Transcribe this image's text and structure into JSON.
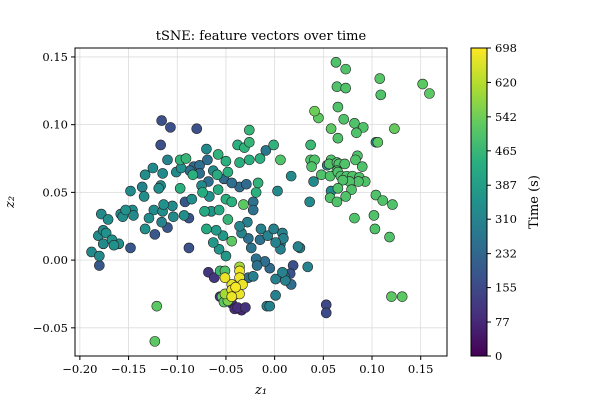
{
  "chart_data": {
    "type": "scatter",
    "title": "tSNE: feature vectors over time",
    "xlabel": "z₁",
    "ylabel": "z₂",
    "xlim": [
      -0.205,
      0.177
    ],
    "ylim": [
      -0.0708,
      0.1566
    ],
    "xticks": [
      -0.2,
      -0.15,
      -0.1,
      -0.05,
      0.0,
      0.05,
      0.1,
      0.15
    ],
    "xtick_labels": [
      "−0.20",
      "−0.15",
      "−0.10",
      "−0.05",
      "0.00",
      "0.05",
      "0.10",
      "0.15"
    ],
    "yticks": [
      -0.05,
      0.0,
      0.05,
      0.1,
      0.15
    ],
    "ytick_labels": [
      "−0.05",
      "0.00",
      "0.05",
      "0.10",
      "0.15"
    ],
    "grid": true,
    "colorbar": {
      "label": "Time (s)",
      "colormap": "viridis",
      "range": [
        0,
        698
      ],
      "ticks": [
        0,
        77,
        155,
        232,
        310,
        387,
        465,
        542,
        620,
        698
      ],
      "tick_labels": [
        "0",
        "77",
        "155",
        "232",
        "310",
        "387",
        "465",
        "542",
        "620",
        "698"
      ]
    },
    "points_format": [
      "z1",
      "z2",
      "time_s"
    ],
    "points": [
      [
        0.063,
        0.146,
        500
      ],
      [
        0.073,
        0.141,
        500
      ],
      [
        0.108,
        0.134,
        510
      ],
      [
        0.152,
        0.13,
        520
      ],
      [
        0.159,
        0.123,
        520
      ],
      [
        0.064,
        0.128,
        500
      ],
      [
        0.073,
        0.127,
        500
      ],
      [
        0.109,
        0.122,
        500
      ],
      [
        0.065,
        0.113,
        500
      ],
      [
        0.041,
        0.11,
        540
      ],
      [
        0.045,
        0.105,
        520
      ],
      [
        0.071,
        0.104,
        500
      ],
      [
        0.082,
        0.101,
        500
      ],
      [
        0.091,
        0.098,
        500
      ],
      [
        0.058,
        0.097,
        520
      ],
      [
        0.123,
        0.097,
        530
      ],
      [
        0.084,
        0.094,
        500
      ],
      [
        0.065,
        0.09,
        500
      ],
      [
        0.104,
        0.087,
        330
      ],
      [
        0.106,
        0.087,
        520
      ],
      [
        0.037,
        0.085,
        470
      ],
      [
        0.037,
        0.074,
        500
      ],
      [
        0.041,
        0.074,
        500
      ],
      [
        0.058,
        0.074,
        500
      ],
      [
        0.085,
        0.077,
        500
      ],
      [
        0.083,
        0.074,
        500
      ],
      [
        0.038,
        0.069,
        500
      ],
      [
        0.054,
        0.07,
        330
      ],
      [
        0.056,
        0.071,
        500
      ],
      [
        0.064,
        0.072,
        500
      ],
      [
        0.066,
        0.071,
        500
      ],
      [
        0.072,
        0.071,
        500
      ],
      [
        0.09,
        0.069,
        500
      ],
      [
        0.064,
        0.066,
        500
      ],
      [
        0.017,
        0.062,
        330
      ],
      [
        0.048,
        0.063,
        500
      ],
      [
        0.057,
        0.062,
        500
      ],
      [
        0.065,
        0.065,
        500
      ],
      [
        0.068,
        0.062,
        500
      ],
      [
        0.074,
        0.062,
        500
      ],
      [
        0.08,
        0.062,
        500
      ],
      [
        0.087,
        0.061,
        500
      ],
      [
        0.093,
        0.058,
        500
      ],
      [
        0.086,
        0.058,
        500
      ],
      [
        0.077,
        0.058,
        500
      ],
      [
        0.07,
        0.059,
        500
      ],
      [
        0.04,
        0.058,
        330
      ],
      [
        0.065,
        0.053,
        500
      ],
      [
        0.058,
        0.051,
        330
      ],
      [
        0.079,
        0.052,
        500
      ],
      [
        0.104,
        0.048,
        500
      ],
      [
        0.073,
        0.047,
        500
      ],
      [
        0.057,
        0.046,
        500
      ],
      [
        0.111,
        0.044,
        500
      ],
      [
        0.064,
        0.043,
        500
      ],
      [
        0.036,
        0.043,
        330
      ],
      [
        0.121,
        0.041,
        500
      ],
      [
        0.102,
        0.033,
        500
      ],
      [
        0.082,
        0.031,
        500
      ],
      [
        0.103,
        0.023,
        500
      ],
      [
        0.118,
        0.017,
        500
      ],
      [
        0.12,
        -0.027,
        520
      ],
      [
        0.131,
        -0.027,
        520
      ],
      [
        0.053,
        -0.033,
        150
      ],
      [
        0.053,
        -0.039,
        160
      ],
      [
        0.026,
        0.009,
        310
      ],
      [
        0.034,
        -0.005,
        310
      ],
      [
        0.019,
        -0.004,
        170
      ],
      [
        0.016,
        -0.01,
        180
      ],
      [
        0.01,
        -0.012,
        300
      ],
      [
        0.008,
        0.02,
        310
      ],
      [
        0.009,
        0.016,
        310
      ],
      [
        0.006,
        0.012,
        300
      ],
      [
        0.006,
        0.008,
        300
      ],
      [
        -0.116,
        0.103,
        170
      ],
      [
        -0.107,
        0.098,
        170
      ],
      [
        -0.08,
        0.097,
        170
      ],
      [
        -0.117,
        0.085,
        170
      ],
      [
        -0.188,
        0.006,
        330
      ],
      [
        -0.18,
        0.003,
        330
      ],
      [
        -0.18,
        -0.004,
        190
      ],
      [
        -0.178,
        0.034,
        330
      ],
      [
        -0.171,
        0.03,
        340
      ],
      [
        -0.181,
        0.018,
        330
      ],
      [
        -0.176,
        0.022,
        330
      ],
      [
        -0.173,
        0.02,
        350
      ],
      [
        -0.176,
        0.012,
        330
      ],
      [
        -0.167,
        0.015,
        350
      ],
      [
        -0.165,
        0.011,
        350
      ],
      [
        -0.16,
        0.012,
        340
      ],
      [
        -0.158,
        0.034,
        330
      ],
      [
        -0.156,
        0.032,
        340
      ],
      [
        -0.153,
        0.037,
        350
      ],
      [
        -0.146,
        0.037,
        330
      ],
      [
        -0.145,
        0.033,
        330
      ],
      [
        -0.148,
        0.051,
        330
      ],
      [
        -0.148,
        0.009,
        190
      ],
      [
        -0.134,
        0.047,
        340
      ],
      [
        -0.136,
        0.054,
        310
      ],
      [
        -0.133,
        0.063,
        340
      ],
      [
        -0.133,
        0.023,
        350
      ],
      [
        -0.129,
        0.031,
        340
      ],
      [
        -0.124,
        0.037,
        330
      ],
      [
        -0.125,
        0.068,
        330
      ],
      [
        -0.119,
        0.053,
        340
      ],
      [
        -0.117,
        0.055,
        330
      ],
      [
        -0.115,
        0.064,
        330
      ],
      [
        -0.123,
        0.019,
        190
      ],
      [
        -0.115,
        0.036,
        340
      ],
      [
        -0.114,
        0.041,
        350
      ],
      [
        -0.116,
        0.028,
        310
      ],
      [
        -0.11,
        0.024,
        190
      ],
      [
        -0.11,
        0.074,
        310
      ],
      [
        -0.105,
        0.04,
        330
      ],
      [
        -0.104,
        0.032,
        330
      ],
      [
        -0.097,
        0.074,
        450
      ],
      [
        -0.091,
        0.075,
        460
      ],
      [
        -0.097,
        0.053,
        440
      ],
      [
        -0.101,
        0.065,
        330
      ],
      [
        -0.096,
        0.068,
        350
      ],
      [
        -0.092,
        0.043,
        190
      ],
      [
        -0.093,
        0.033,
        340
      ],
      [
        -0.088,
        0.031,
        180
      ],
      [
        -0.088,
        0.009,
        180
      ],
      [
        -0.085,
        0.045,
        340
      ],
      [
        -0.084,
        0.063,
        440
      ],
      [
        -0.083,
        0.069,
        240
      ],
      [
        -0.077,
        0.07,
        250
      ],
      [
        -0.121,
        -0.034,
        520
      ],
      [
        -0.123,
        -0.06,
        520
      ],
      [
        -0.07,
        0.082,
        330
      ],
      [
        -0.058,
        0.078,
        450
      ],
      [
        -0.069,
        0.074,
        250
      ],
      [
        -0.05,
        0.073,
        440
      ],
      [
        -0.038,
        0.085,
        440
      ],
      [
        -0.031,
        0.083,
        450
      ],
      [
        -0.026,
        0.087,
        460
      ],
      [
        -0.026,
        0.096,
        460
      ],
      [
        -0.015,
        0.075,
        440
      ],
      [
        -0.009,
        0.081,
        280
      ],
      [
        -0.001,
        0.085,
        450
      ],
      [
        0.006,
        0.074,
        500
      ],
      [
        0.003,
        0.051,
        330
      ],
      [
        -0.026,
        0.074,
        440
      ],
      [
        -0.036,
        0.072,
        440
      ],
      [
        -0.063,
        0.066,
        330
      ],
      [
        -0.077,
        0.064,
        250
      ],
      [
        -0.087,
        0.066,
        250
      ],
      [
        -0.059,
        0.063,
        430
      ],
      [
        -0.052,
        0.06,
        240
      ],
      [
        -0.044,
        0.057,
        250
      ],
      [
        -0.048,
        0.065,
        440
      ],
      [
        -0.036,
        0.054,
        240
      ],
      [
        -0.029,
        0.056,
        240
      ],
      [
        -0.075,
        0.055,
        330
      ],
      [
        -0.068,
        0.058,
        250
      ],
      [
        -0.058,
        0.052,
        430
      ],
      [
        -0.074,
        0.05,
        430
      ],
      [
        -0.067,
        0.047,
        350
      ],
      [
        -0.05,
        0.045,
        440
      ],
      [
        -0.044,
        0.043,
        440
      ],
      [
        -0.032,
        0.041,
        520
      ],
      [
        -0.022,
        0.043,
        260
      ],
      [
        -0.019,
        0.05,
        440
      ],
      [
        -0.017,
        0.057,
        450
      ],
      [
        -0.022,
        0.037,
        260
      ],
      [
        -0.072,
        0.036,
        420
      ],
      [
        -0.065,
        0.036,
        360
      ],
      [
        -0.057,
        0.037,
        420
      ],
      [
        -0.048,
        0.03,
        460
      ],
      [
        -0.07,
        0.023,
        420
      ],
      [
        -0.06,
        0.022,
        380
      ],
      [
        -0.053,
        0.018,
        370
      ],
      [
        -0.063,
        0.013,
        370
      ],
      [
        -0.057,
        0.008,
        360
      ],
      [
        -0.05,
        0.003,
        370
      ],
      [
        -0.044,
        0.014,
        520
      ],
      [
        -0.036,
        0.025,
        320
      ],
      [
        -0.034,
        0.02,
        310
      ],
      [
        -0.028,
        0.028,
        300
      ],
      [
        -0.027,
        0.016,
        260
      ],
      [
        -0.024,
        0.009,
        270
      ],
      [
        -0.019,
        0.001,
        260
      ],
      [
        -0.015,
        0.015,
        260
      ],
      [
        -0.014,
        0.023,
        310
      ],
      [
        -0.007,
        0.018,
        310
      ],
      [
        -0.001,
        0.023,
        310
      ],
      [
        0.001,
        0.013,
        310
      ],
      [
        -0.01,
        -0.001,
        250
      ],
      [
        -0.005,
        -0.006,
        240
      ],
      [
        0.001,
        -0.014,
        300
      ],
      [
        0.008,
        -0.009,
        310
      ],
      [
        0.011,
        -0.015,
        300
      ],
      [
        0.017,
        -0.018,
        250
      ],
      [
        -0.018,
        -0.004,
        260
      ],
      [
        0.001,
        -0.026,
        300
      ],
      [
        -0.008,
        -0.034,
        300
      ],
      [
        -0.005,
        -0.034,
        300
      ],
      [
        -0.022,
        -0.012,
        300
      ],
      [
        0.024,
        0.01,
        310
      ],
      [
        -0.068,
        -0.009,
        110
      ],
      [
        -0.062,
        -0.013,
        110
      ],
      [
        -0.056,
        -0.008,
        470
      ],
      [
        -0.051,
        -0.008,
        500
      ],
      [
        -0.036,
        -0.005,
        600
      ],
      [
        -0.036,
        -0.008,
        680
      ],
      [
        -0.051,
        -0.013,
        680
      ],
      [
        -0.044,
        -0.018,
        670
      ],
      [
        -0.036,
        -0.013,
        680
      ],
      [
        -0.044,
        -0.022,
        680
      ],
      [
        -0.036,
        -0.025,
        680
      ],
      [
        -0.044,
        -0.027,
        680
      ],
      [
        -0.051,
        -0.025,
        600
      ],
      [
        -0.048,
        -0.03,
        560
      ],
      [
        -0.054,
        -0.027,
        520
      ],
      [
        -0.052,
        -0.031,
        520
      ],
      [
        -0.044,
        -0.032,
        90
      ],
      [
        -0.041,
        -0.036,
        90
      ],
      [
        -0.034,
        -0.037,
        80
      ],
      [
        -0.038,
        -0.035,
        90
      ],
      [
        -0.03,
        -0.035,
        100
      ],
      [
        -0.056,
        -0.027,
        110
      ],
      [
        -0.027,
        -0.013,
        250
      ],
      [
        -0.033,
        -0.018,
        680
      ],
      [
        -0.04,
        -0.02,
        690
      ],
      [
        -0.042,
        -0.026,
        670
      ]
    ]
  }
}
